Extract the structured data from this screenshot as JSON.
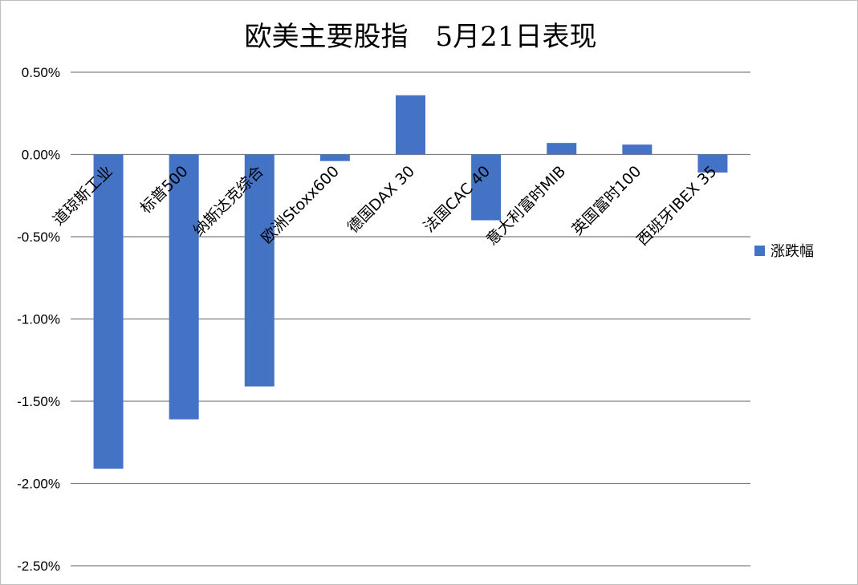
{
  "chart_data": {
    "type": "bar",
    "title": "欧美主要股指　5月21日表现",
    "categories": [
      "道琼斯工业",
      "标普500",
      "纳斯达克综合",
      "欧洲Stoxx600",
      "德国DAX 30",
      "法国CAC 40",
      "意大利富时MIB",
      "英国富时100",
      "西班牙IBEX 35"
    ],
    "series": [
      {
        "name": "涨跌幅",
        "values": [
          -1.91,
          -1.61,
          -1.41,
          -0.04,
          0.36,
          -0.4,
          0.07,
          0.06,
          -0.11
        ],
        "color": "#4472c4"
      }
    ],
    "yticks": [
      "0.50%",
      "0.00%",
      "-0.50%",
      "-1.00%",
      "-1.50%",
      "-2.00%",
      "-2.50%"
    ],
    "ylim": [
      -2.5,
      0.5
    ],
    "ylabel": "",
    "xlabel": "",
    "grid": true,
    "legend": "right",
    "colors": {
      "bar": "#4472c4",
      "grid": "#808080"
    }
  }
}
